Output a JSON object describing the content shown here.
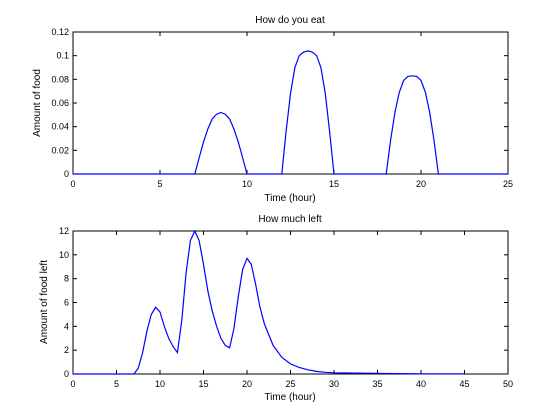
{
  "chart_data": [
    {
      "type": "line",
      "title": "How do you eat",
      "xlabel": "Time (hour)",
      "ylabel": "Amount of food",
      "xlim": [
        0,
        25
      ],
      "ylim": [
        0,
        0.12
      ],
      "xticks": [
        0,
        5,
        10,
        15,
        20,
        25
      ],
      "yticks": [
        0,
        0.02,
        0.04,
        0.06,
        0.08,
        0.1,
        0.12
      ],
      "xtick_labels": [
        "0",
        "5",
        "10",
        "15",
        "20",
        "25"
      ],
      "ytick_labels": [
        "0",
        "0.02",
        "0.04",
        "0.06",
        "0.08",
        "0.1",
        "0.12"
      ],
      "grid": false,
      "color": "#0000ff",
      "series": [
        {
          "x": [
            0,
            7,
            7.25,
            7.5,
            7.75,
            8,
            8.25,
            8.5,
            8.75,
            9,
            9.25,
            9.5,
            9.75,
            10,
            12,
            12.25,
            12.5,
            12.75,
            13,
            13.25,
            13.5,
            13.75,
            14,
            14.25,
            14.5,
            14.75,
            15,
            18,
            18.25,
            18.5,
            18.75,
            19,
            19.25,
            19.5,
            19.75,
            20,
            20.25,
            20.5,
            20.75,
            21,
            25
          ],
          "y": [
            0,
            0,
            0.0135,
            0.027,
            0.038,
            0.0465,
            0.0505,
            0.052,
            0.0505,
            0.0465,
            0.038,
            0.027,
            0.0135,
            0,
            0,
            0.036,
            0.068,
            0.09,
            0.1,
            0.103,
            0.104,
            0.103,
            0.1,
            0.09,
            0.068,
            0.036,
            0,
            0,
            0.0285,
            0.052,
            0.069,
            0.079,
            0.0825,
            0.083,
            0.0825,
            0.079,
            0.069,
            0.052,
            0.0285,
            0,
            0
          ]
        }
      ]
    },
    {
      "type": "line",
      "title": "How much left",
      "xlabel": "Time (hour)",
      "ylabel": "Amount of food left",
      "xlim": [
        0,
        50
      ],
      "ylim": [
        0,
        12
      ],
      "xticks": [
        0,
        5,
        10,
        15,
        20,
        25,
        30,
        35,
        40,
        45,
        50
      ],
      "yticks": [
        0,
        2,
        4,
        6,
        8,
        10,
        12
      ],
      "xtick_labels": [
        "0",
        "5",
        "10",
        "15",
        "20",
        "25",
        "30",
        "35",
        "40",
        "45",
        "50"
      ],
      "ytick_labels": [
        "0",
        "2",
        "4",
        "6",
        "8",
        "10",
        "12"
      ],
      "grid": false,
      "color": "#0000ff",
      "series": [
        {
          "x": [
            0,
            7,
            7.5,
            8,
            8.5,
            9,
            9.5,
            10,
            10.5,
            11,
            11.5,
            12,
            12.5,
            13,
            13.5,
            14,
            14.5,
            15,
            15.5,
            16,
            16.5,
            17,
            17.5,
            18,
            18.5,
            19,
            19.5,
            20,
            20.5,
            21,
            21.5,
            22,
            23,
            24,
            25,
            26,
            27,
            28,
            29,
            30,
            35,
            40,
            45
          ],
          "y": [
            0,
            0,
            0.5,
            1.8,
            3.6,
            5.0,
            5.6,
            5.2,
            4.0,
            3.0,
            2.3,
            1.8,
            4.5,
            8.5,
            11.2,
            12.0,
            11.2,
            9.2,
            7.0,
            5.3,
            4.0,
            3.0,
            2.4,
            2.2,
            3.8,
            6.5,
            8.8,
            9.7,
            9.2,
            7.5,
            5.6,
            4.2,
            2.4,
            1.4,
            0.85,
            0.55,
            0.35,
            0.22,
            0.14,
            0.1,
            0.05,
            0.02,
            0.02
          ]
        }
      ]
    }
  ]
}
